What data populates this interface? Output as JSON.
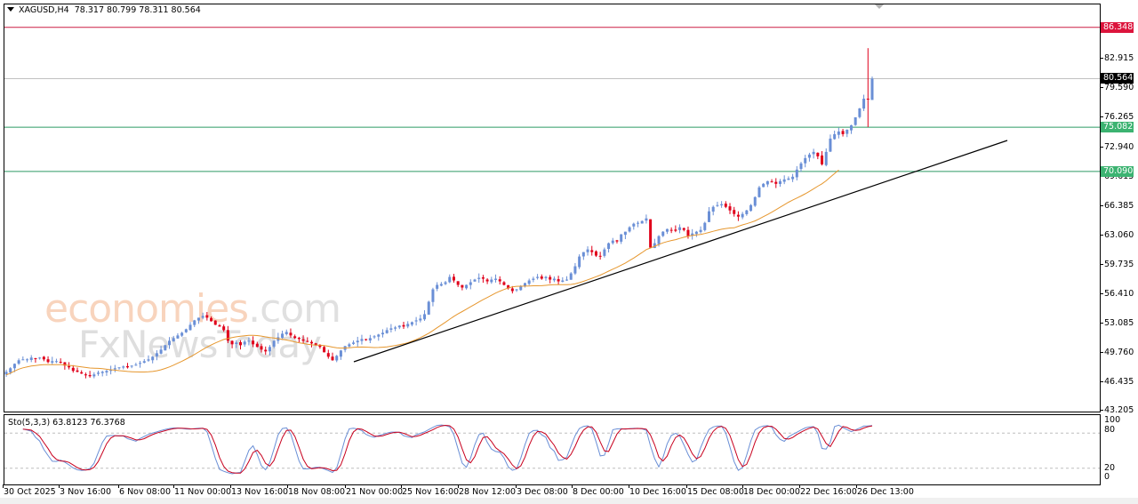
{
  "header": {
    "symbol": "XAGUSD,H4",
    "ohlc": "78.317 80.799 78.311 80.564",
    "dropdown_icon": "triangle-down-icon"
  },
  "colors": {
    "bull": "#6a8fd6",
    "bear": "#e0001a",
    "resistance": "#cc1f44",
    "support": "#2e9a65",
    "price_line": "#c0c0c0",
    "ma": "#e6972e",
    "trendline": "#000000",
    "stoch_main": "#6a8fd6",
    "stoch_signal": "#c8001e"
  },
  "price_axis": {
    "labels": [
      "82.915",
      "79.590",
      "76.265",
      "72.940",
      "69.615",
      "66.385",
      "63.060",
      "59.735",
      "56.410",
      "53.085",
      "49.760",
      "46.435",
      "43.205"
    ],
    "tags": [
      {
        "value": "86.348",
        "color": "#dc143c",
        "kind": "resistance"
      },
      {
        "value": "80.564",
        "color": "#000000",
        "kind": "current-price"
      },
      {
        "value": "75.082",
        "color": "#3cb371",
        "kind": "support"
      },
      {
        "value": "70.090",
        "color": "#3cb371",
        "kind": "support"
      }
    ]
  },
  "indicator": {
    "title": "Sto(5,3,3) 63.8123 76.3768",
    "levels": [
      "100",
      "80",
      "20",
      "0"
    ]
  },
  "time_axis": {
    "labels": [
      "30 Oct 2025",
      "3 Nov 16:00",
      "6 Nov 08:00",
      "11 Nov 00:00",
      "13 Nov 16:00",
      "18 Nov 08:00",
      "21 Nov 00:00",
      "25 Nov 16:00",
      "28 Nov 12:00",
      "3 Dec 08:00",
      "8 Dec 00:00",
      "10 Dec 16:00",
      "15 Dec 08:00",
      "18 Dec 00:00",
      "22 Dec 16:00",
      "26 Dec 13:00"
    ]
  },
  "watermark": {
    "line1": "economies",
    "line1_suffix": ".com",
    "line2": "FxNewsToday"
  },
  "chart_data": {
    "type": "candlestick",
    "title": "XAGUSD,H4",
    "ohlc_last": {
      "open": 78.317,
      "high": 80.799,
      "low": 78.311,
      "close": 80.564
    },
    "ylim": [
      43.205,
      87.5
    ],
    "horizontal_levels": [
      {
        "price": 86.348,
        "label": "resistance"
      },
      {
        "price": 80.564,
        "label": "current price"
      },
      {
        "price": 75.082,
        "label": "support"
      },
      {
        "price": 70.09,
        "label": "support"
      }
    ],
    "trendline": {
      "from": {
        "date": "21 Nov 00:00",
        "price": 48.6
      },
      "to": {
        "date": "beyond 26 Dec",
        "price": 73.6
      }
    },
    "closes": [
      47.5,
      47.9,
      48.4,
      48.8,
      48.9,
      48.9,
      49.1,
      49.0,
      49.1,
      48.9,
      48.6,
      48.7,
      48.7,
      48.6,
      48.2,
      48.0,
      47.6,
      47.5,
      47.3,
      47.1,
      47.0,
      47.2,
      47.4,
      47.5,
      47.6,
      47.7,
      47.9,
      48.0,
      48.1,
      48.0,
      48.2,
      48.3,
      48.5,
      48.7,
      48.9,
      49.2,
      49.6,
      50.0,
      50.5,
      51.0,
      51.3,
      51.6,
      51.9,
      52.3,
      52.8,
      53.3,
      53.6,
      53.8,
      53.6,
      53.2,
      52.8,
      52.6,
      52.2,
      51.0,
      50.6,
      50.8,
      50.5,
      50.9,
      51.0,
      50.6,
      50.3,
      50.0,
      49.8,
      50.3,
      51.0,
      51.4,
      51.8,
      52.0,
      51.6,
      51.3,
      51.2,
      51.0,
      50.9,
      50.7,
      50.5,
      50.3,
      49.7,
      49.2,
      48.8,
      49.3,
      49.9,
      50.4,
      50.6,
      50.8,
      51.0,
      51.2,
      51.1,
      51.3,
      51.5,
      51.7,
      51.9,
      52.2,
      52.4,
      52.5,
      52.7,
      52.6,
      52.9,
      53.1,
      53.3,
      53.5,
      54.0,
      55.4,
      56.8,
      57.3,
      57.4,
      57.6,
      58.2,
      57.8,
      57.3,
      57.0,
      57.3,
      57.6,
      57.9,
      58.1,
      58.0,
      57.7,
      57.9,
      58.0,
      57.7,
      57.3,
      56.9,
      56.6,
      56.8,
      57.2,
      57.5,
      57.8,
      58.0,
      58.2,
      58.0,
      58.2,
      57.9,
      58.0,
      57.7,
      57.8,
      57.9,
      58.6,
      59.4,
      60.5,
      61.0,
      61.3,
      61.0,
      60.6,
      60.5,
      61.3,
      62.0,
      62.3,
      62.2,
      63.0,
      63.3,
      63.8,
      64.2,
      64.3,
      64.5,
      64.8,
      61.5,
      62.0,
      62.8,
      63.3,
      63.6,
      63.5,
      63.4,
      63.8,
      63.5,
      62.8,
      63.1,
      63.3,
      63.5,
      64.3,
      65.6,
      66.1,
      66.3,
      66.4,
      66.1,
      65.7,
      65.3,
      65.0,
      65.3,
      65.7,
      66.3,
      67.2,
      68.3,
      68.7,
      69.0,
      68.9,
      68.7,
      69.0,
      69.2,
      69.3,
      69.5,
      70.3,
      71.0,
      71.6,
      72.0,
      72.3,
      71.8,
      70.9,
      72.3,
      73.8,
      74.3,
      74.6,
      74.3,
      74.8,
      75.3,
      76.2,
      77.2,
      78.3,
      78.2,
      80.564
    ],
    "stochastic": {
      "k_period": 5,
      "d_period": 3,
      "slowing": 3,
      "main": 63.8123,
      "signal": 76.3768,
      "levels": [
        20,
        80
      ]
    }
  }
}
